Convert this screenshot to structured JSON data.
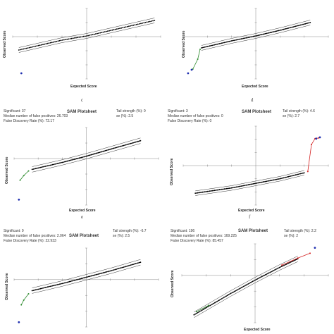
{
  "panels": [
    {
      "letter": "c",
      "title": "",
      "significant": "",
      "median": "",
      "fdr": "",
      "tail": "",
      "se": "",
      "xlabel": "Expected Score",
      "ylabel": "Observed Score"
    },
    {
      "letter": "d",
      "title": "",
      "significant": "",
      "median": "",
      "fdr": "",
      "tail": "",
      "se": "",
      "xlabel": "Expected Score",
      "ylabel": "Observed Score"
    },
    {
      "letter": "e",
      "title": "SAM Plotsheet",
      "significant": "Significant: 37",
      "median": "Median number of false positives: 26.703",
      "fdr": "False Discovery Rate (%): 72.17",
      "tail": "Tail strength (%): 0",
      "se": "se (%): 2.5",
      "xlabel": "Expected Score",
      "ylabel": "Observed Score"
    },
    {
      "letter": "f",
      "title": "SAM Plotsheet",
      "significant": "Significant: 3",
      "median": "Median number of false positives: 0",
      "fdr": "False Discovery Rate (%): 0",
      "tail": "Tail strength (%): 4.6",
      "se": "se (%): 2.7",
      "xlabel": "Expected Score",
      "ylabel": "Observed Score"
    },
    {
      "letter": "",
      "title": "SAM Plotsheet",
      "significant": "Significant: 9",
      "median": "Median number of false positives: 2.064",
      "fdr": "False Discovery Rate (%): 22.933",
      "tail": "Tail strength (%): -6.7",
      "se": "se (%): 2.5",
      "xlabel": "Expected Score",
      "ylabel": "Observed Score"
    },
    {
      "letter": "",
      "title": "SAM Plotsheet",
      "significant": "Significant: 196",
      "median": "Median number of false positives: 169.225",
      "fdr": "False Discovery Rate (%): 85.457",
      "tail": "Tail strength (%): 2.2",
      "se": "se (%): 2",
      "xlabel": "Expected Score",
      "ylabel": "Observed Score"
    }
  ],
  "chart_data": [
    {
      "type": "scatter",
      "panel": "c",
      "xlim": [
        -6,
        6
      ],
      "ylim": [
        -6,
        4
      ],
      "series": [
        {
          "role": "bulk",
          "color": "#000000",
          "values": [
            [
              -5.5,
              -1.9
            ],
            [
              -4,
              -1.3
            ],
            [
              -2,
              -0.5
            ],
            [
              0,
              0.1
            ],
            [
              2,
              0.9
            ],
            [
              4,
              1.7
            ],
            [
              5.5,
              2.3
            ]
          ]
        },
        {
          "role": "outlier",
          "color": "#1f2fb0",
          "values": [
            [
              -5.3,
              -5.2
            ]
          ]
        }
      ]
    },
    {
      "type": "scatter",
      "panel": "d",
      "xlim": [
        -6,
        6
      ],
      "ylim": [
        -6,
        4
      ],
      "series": [
        {
          "role": "bulk",
          "color": "#000000",
          "values": [
            [
              -4.5,
              -1.6
            ],
            [
              -2,
              -0.6
            ],
            [
              0,
              0.1
            ],
            [
              2,
              0.9
            ],
            [
              4.5,
              2
            ]
          ]
        },
        {
          "role": "significant-low",
          "color": "#2e8b2e",
          "values": [
            [
              -4.6,
              -1.8
            ],
            [
              -4.8,
              -3.2
            ],
            [
              -5.2,
              -4.6
            ]
          ]
        },
        {
          "role": "outlier",
          "color": "#1f2fb0",
          "values": [
            [
              -5.6,
              -5.2
            ],
            [
              -5.3,
              -4.7
            ]
          ]
        }
      ]
    },
    {
      "type": "scatter",
      "panel": "e",
      "xlim": [
        -6,
        6
      ],
      "ylim": [
        -6,
        4
      ],
      "series": [
        {
          "role": "bulk",
          "color": "#000000",
          "values": [
            [
              -4.5,
              -1.4
            ],
            [
              -2,
              -0.5
            ],
            [
              0,
              0.3
            ],
            [
              2,
              1.2
            ],
            [
              4.5,
              2.3
            ]
          ]
        },
        {
          "role": "significant-low",
          "color": "#2e8b2e",
          "values": [
            [
              -4.8,
              -1.6
            ],
            [
              -5.2,
              -2.2
            ],
            [
              -5.5,
              -2.8
            ]
          ]
        },
        {
          "role": "outlier",
          "color": "#1f2fb0",
          "values": [
            [
              -5.6,
              -5.3
            ]
          ]
        }
      ]
    },
    {
      "type": "scatter",
      "panel": "f",
      "xlim": [
        -6,
        6
      ],
      "ylim": [
        -6,
        6
      ],
      "series": [
        {
          "role": "bulk",
          "color": "#000000",
          "values": [
            [
              -5,
              -4.2
            ],
            [
              -2,
              -3.4
            ],
            [
              0,
              -2.7
            ],
            [
              2,
              -2
            ],
            [
              4,
              -1.1
            ]
          ]
        },
        {
          "role": "significant-high",
          "color": "#d42020",
          "values": [
            [
              4.3,
              -0.9
            ],
            [
              4.6,
              3.2
            ],
            [
              4.9,
              4.1
            ],
            [
              5.2,
              4.2
            ]
          ]
        },
        {
          "role": "outlier",
          "color": "#1f2fb0",
          "values": [
            [
              5.0,
              4.1
            ],
            [
              5.3,
              4.3
            ]
          ]
        }
      ]
    },
    {
      "type": "scatter",
      "panel": "g",
      "xlim": [
        -6,
        6
      ],
      "ylim": [
        -6,
        4
      ],
      "series": [
        {
          "role": "bulk",
          "color": "#000000",
          "values": [
            [
              -4.5,
              -1.4
            ],
            [
              -2,
              -0.5
            ],
            [
              0,
              0.3
            ],
            [
              2,
              1.1
            ],
            [
              4.5,
              2.2
            ]
          ]
        },
        {
          "role": "significant-low",
          "color": "#2e8b2e",
          "values": [
            [
              -4.8,
              -1.8
            ],
            [
              -5.2,
              -2.6
            ],
            [
              -5.4,
              -3.2
            ]
          ]
        },
        {
          "role": "outlier",
          "color": "#1f2fb0",
          "values": [
            [
              -5.6,
              -5.4
            ]
          ]
        }
      ]
    },
    {
      "type": "scatter",
      "panel": "h",
      "xlim": [
        -6,
        6
      ],
      "ylim": [
        -6,
        4
      ],
      "series": [
        {
          "role": "bulk",
          "color": "#000000",
          "values": [
            [
              -5,
              -5
            ],
            [
              -2,
              -2.3
            ],
            [
              0,
              -0.6
            ],
            [
              2,
              1
            ],
            [
              3.5,
              2.1
            ]
          ]
        },
        {
          "role": "significant-low",
          "color": "#2e8b2e",
          "values": [
            [
              -4.8,
              -4.6
            ],
            [
              -3.8,
              -3.8
            ]
          ]
        },
        {
          "role": "significant-high",
          "color": "#d42020",
          "values": [
            [
              2.2,
              1.3
            ],
            [
              3.5,
              2.2
            ],
            [
              4.5,
              2.8
            ]
          ]
        },
        {
          "role": "outlier",
          "color": "#1f2fb0",
          "values": [
            [
              4.9,
              3.5
            ]
          ]
        }
      ]
    }
  ]
}
